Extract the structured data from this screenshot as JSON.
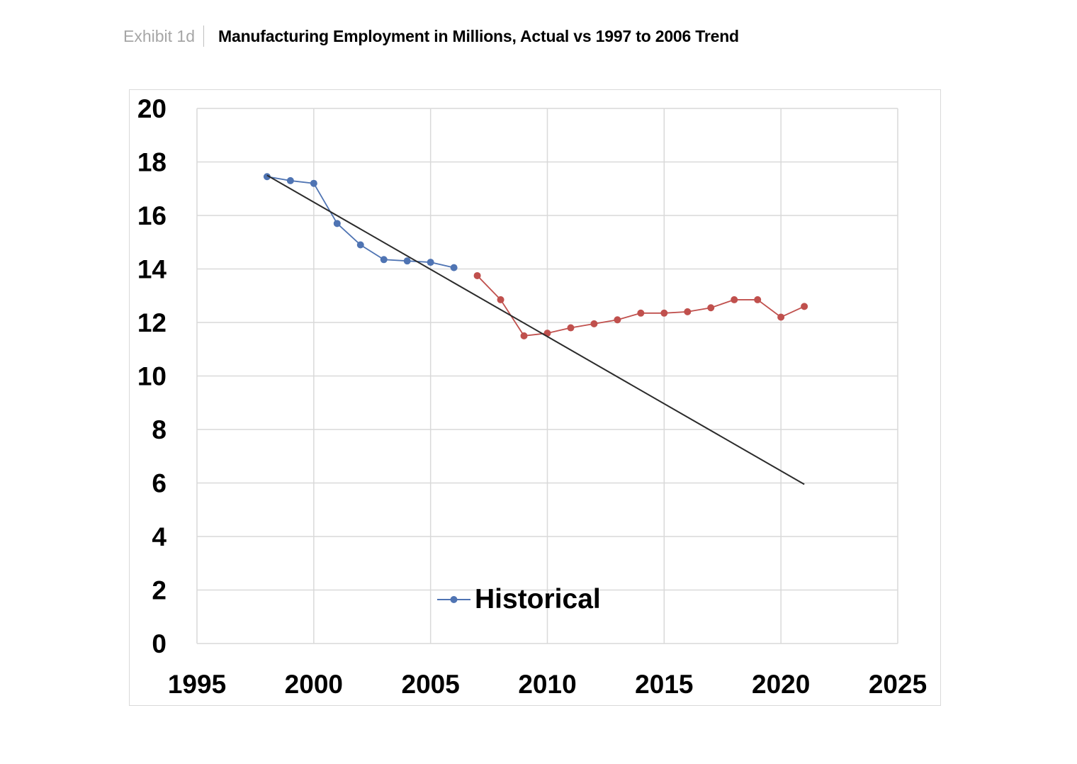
{
  "header": {
    "exhibit": "Exhibit 1d",
    "title": "Manufacturing Employment in Millions, Actual vs 1997 to 2006 Trend"
  },
  "chart_data": {
    "type": "scatter",
    "title": "Manufacturing Employment in Millions, Actual vs 1997 to 2006 Trend",
    "xlabel": "",
    "ylabel": "",
    "xlim": [
      1995,
      2025
    ],
    "ylim": [
      0,
      20
    ],
    "x_ticks": [
      1995,
      2000,
      2005,
      2010,
      2015,
      2020,
      2025
    ],
    "y_ticks": [
      0,
      2,
      4,
      6,
      8,
      10,
      12,
      14,
      16,
      18,
      20
    ],
    "grid": true,
    "legend": {
      "position": "bottom-center",
      "entries": [
        "Historical"
      ]
    },
    "colors": {
      "historical": "#4f74b3",
      "later": "#c0504d",
      "trend": "#2b2b2b",
      "grid": "#d9d9d9"
    },
    "series": [
      {
        "name": "Historical",
        "x": [
          1998,
          1999,
          2000,
          2001,
          2002,
          2003,
          2004,
          2005,
          2006
        ],
        "values": [
          17.45,
          17.3,
          17.2,
          15.7,
          14.9,
          14.35,
          14.3,
          14.25,
          14.05
        ]
      },
      {
        "x": [
          2007,
          2008,
          2009,
          2010,
          2011,
          2012,
          2013,
          2014,
          2015,
          2016,
          2017,
          2018,
          2019,
          2020,
          2021
        ],
        "values": [
          13.75,
          12.85,
          11.5,
          11.6,
          11.8,
          11.95,
          12.1,
          12.35,
          12.35,
          12.4,
          12.55,
          12.85,
          12.85,
          12.2,
          12.6
        ]
      },
      {
        "x": [
          1998,
          2021
        ],
        "values": [
          17.5,
          5.95
        ]
      }
    ]
  }
}
